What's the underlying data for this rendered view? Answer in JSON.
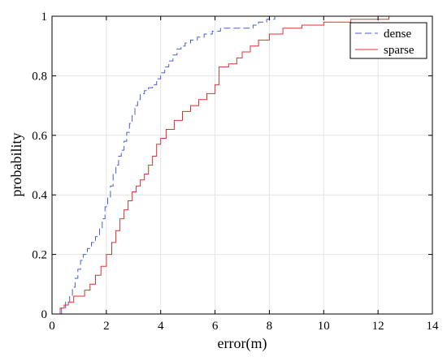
{
  "chart_data": {
    "type": "line",
    "title": "",
    "xlabel": "error(m)",
    "ylabel": "probability",
    "xlim": [
      0,
      14
    ],
    "ylim": [
      0,
      1
    ],
    "xticks": [
      0,
      2,
      4,
      6,
      8,
      10,
      12,
      14
    ],
    "yticks": [
      0,
      0.2,
      0.4,
      0.6,
      0.8,
      1
    ],
    "x_tick_labels": [
      "0",
      "2",
      "4",
      "6",
      "8",
      "10",
      "12",
      "14"
    ],
    "y_tick_labels": [
      "0",
      "0.2",
      "0.4",
      "0.6",
      "0.8",
      "1"
    ],
    "grid": true,
    "legend_position": "top-right",
    "series": [
      {
        "name": "dense",
        "color": "#4a5fd1",
        "style": "dashed",
        "x": [
          0.35,
          0.5,
          0.65,
          0.75,
          0.85,
          0.95,
          1.05,
          1.15,
          1.3,
          1.45,
          1.6,
          1.75,
          1.85,
          1.95,
          2.05,
          2.15,
          2.25,
          2.35,
          2.45,
          2.55,
          2.65,
          2.75,
          2.85,
          2.95,
          3.05,
          3.15,
          3.25,
          3.4,
          3.55,
          3.7,
          3.85,
          4.0,
          4.15,
          4.3,
          4.45,
          4.6,
          4.75,
          4.9,
          5.1,
          5.35,
          5.6,
          5.9,
          6.2,
          6.6,
          7.0,
          7.4,
          7.6,
          7.9,
          8.2
        ],
        "y": [
          0.02,
          0.04,
          0.06,
          0.09,
          0.12,
          0.15,
          0.18,
          0.2,
          0.22,
          0.24,
          0.26,
          0.29,
          0.32,
          0.36,
          0.39,
          0.43,
          0.47,
          0.5,
          0.53,
          0.55,
          0.58,
          0.61,
          0.64,
          0.67,
          0.7,
          0.72,
          0.74,
          0.75,
          0.76,
          0.77,
          0.79,
          0.81,
          0.83,
          0.85,
          0.87,
          0.89,
          0.9,
          0.91,
          0.92,
          0.93,
          0.94,
          0.95,
          0.96,
          0.96,
          0.96,
          0.97,
          0.98,
          0.99,
          1.0
        ]
      },
      {
        "name": "sparse",
        "color": "#e03030",
        "style": "solid",
        "x": [
          0.3,
          0.45,
          0.6,
          0.8,
          1.2,
          1.4,
          1.6,
          1.8,
          2.0,
          2.2,
          2.35,
          2.5,
          2.65,
          2.8,
          2.95,
          3.1,
          3.25,
          3.4,
          3.55,
          3.7,
          3.85,
          4.0,
          4.2,
          4.5,
          4.8,
          5.1,
          5.4,
          5.7,
          6.0,
          6.15,
          6.5,
          6.8,
          7.0,
          7.3,
          7.6,
          8.0,
          8.5,
          9.2,
          10.0,
          11.0,
          12.4
        ],
        "y": [
          0.02,
          0.03,
          0.04,
          0.06,
          0.08,
          0.1,
          0.13,
          0.16,
          0.2,
          0.24,
          0.28,
          0.32,
          0.35,
          0.38,
          0.41,
          0.43,
          0.45,
          0.47,
          0.5,
          0.53,
          0.57,
          0.59,
          0.62,
          0.65,
          0.68,
          0.7,
          0.72,
          0.74,
          0.77,
          0.83,
          0.84,
          0.86,
          0.88,
          0.9,
          0.92,
          0.94,
          0.96,
          0.97,
          0.98,
          0.99,
          1.0
        ]
      }
    ]
  }
}
